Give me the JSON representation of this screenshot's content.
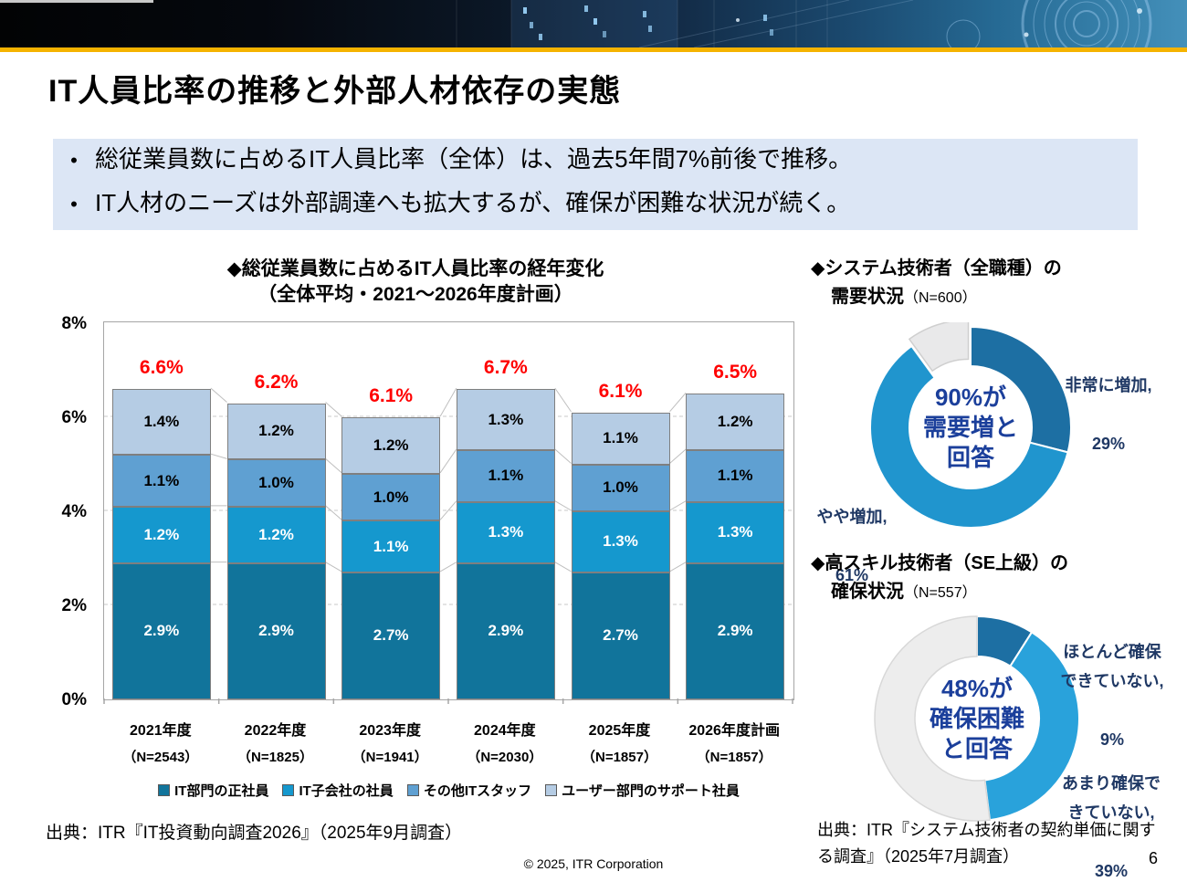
{
  "header": {
    "title": "IT人員比率の推移と外部人材依存の実態"
  },
  "bullets": {
    "marker": "•",
    "items": [
      "総従業員数に占めるIT人員比率（全体）は、過去5年間7%前後で推移。",
      "IT人材のニーズは外部調達へも拡大するが、確保が困難な状況が続く。"
    ]
  },
  "chart_data": [
    {
      "type": "bar",
      "stacked": true,
      "title_line1": "◆総従業員数に占めるIT人員比率の経年変化",
      "title_line2": "（全体平均・2021～2026年度計画）",
      "categories": [
        "2021年度",
        "2022年度",
        "2023年度",
        "2024年度",
        "2025年度",
        "2026年度計画"
      ],
      "sample_sizes": [
        "（N=2543）",
        "（N=1825）",
        "（N=1941）",
        "（N=2030）",
        "（N=1857）",
        "（N=1857）"
      ],
      "series": [
        {
          "name": "IT部門の正社員",
          "color": "#11749B",
          "text_color": "#FFFFFF",
          "values": [
            2.9,
            2.9,
            2.7,
            2.9,
            2.7,
            2.9
          ]
        },
        {
          "name": "IT子会社の社員",
          "color": "#1598CE",
          "text_color": "#FFFFFF",
          "values": [
            1.2,
            1.2,
            1.1,
            1.3,
            1.3,
            1.3
          ]
        },
        {
          "name": "その他ITスタッフ",
          "color": "#5FA0D2",
          "text_color": "#000000",
          "values": [
            1.1,
            1.0,
            1.0,
            1.1,
            1.0,
            1.1
          ]
        },
        {
          "name": "ユーザー部門のサポート社員",
          "color": "#B5CCE4",
          "text_color": "#000000",
          "values": [
            1.4,
            1.2,
            1.2,
            1.3,
            1.1,
            1.2
          ]
        }
      ],
      "totals": [
        6.6,
        6.2,
        6.1,
        6.7,
        6.1,
        6.5
      ],
      "totals_color": "#FF0000",
      "ylim": [
        0,
        8
      ],
      "yticks": [
        {
          "label": "8%",
          "value": 8
        },
        {
          "label": "6%",
          "value": 6
        },
        {
          "label": "4%",
          "value": 4
        },
        {
          "label": "2%",
          "value": 2
        },
        {
          "label": "0%",
          "value": 0
        }
      ],
      "gridlines": [
        2,
        4,
        6
      ],
      "legend_position": "bottom",
      "source": "出典：ITR『IT投資動向調査2026』（2025年9月調査）"
    },
    {
      "type": "donut",
      "title_line1": "◆システム技術者（全職種）の",
      "title_line2": "需要状況",
      "sample_size": "（N=600）",
      "center_text": "90%が\n需要増と\n回答",
      "center_text_color": "#1B3F9B",
      "slices": [
        {
          "label": "非常に増加,",
          "value": 29,
          "value_label": "29%",
          "color": "#1D6FA3"
        },
        {
          "label": "やや増加,",
          "value": 61,
          "value_label": "61%",
          "color": "#2095CE"
        },
        {
          "label": "",
          "value": 10,
          "value_label": "",
          "color": "#E9E9EA",
          "explode": 8,
          "border_color": "#CFCFCF"
        }
      ]
    },
    {
      "type": "donut",
      "title_line1": "◆高スキル技術者（SE上級）の",
      "title_line2": "確保状況",
      "sample_size": "（N=557）",
      "center_text": "48%が\n確保困難\nと回答",
      "center_text_color": "#1B3F9B",
      "slices": [
        {
          "label": "ほとんど確保\nできていない,",
          "value": 9,
          "value_label": "9%",
          "color": "#1D6FA3"
        },
        {
          "label": "あまり確保で\nきていない,",
          "value": 39,
          "value_label": "39%",
          "color": "#29A2DB"
        },
        {
          "label": "",
          "value": 52,
          "value_label": "",
          "color": "#EDEDED",
          "border_color": "#D8D8D8"
        }
      ],
      "source": "出典：ITR『システム技術者の契約単価に関する調査』（2025年7月調査）"
    }
  ],
  "footer": {
    "copyright": "© 2025, ITR Corporation",
    "page_number": "6"
  }
}
